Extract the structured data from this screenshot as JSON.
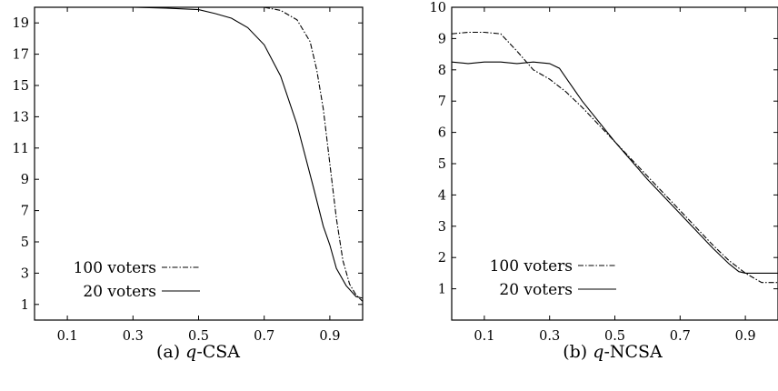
{
  "chart_data": [
    {
      "type": "line",
      "caption_prefix": "(a) ",
      "caption_italic": "q",
      "caption_suffix": "-CSA",
      "xlim": [
        0.0,
        1.0
      ],
      "ylim": [
        0,
        20
      ],
      "xticks": [
        0.1,
        0.3,
        0.5,
        0.7,
        0.9
      ],
      "yticks": [
        1,
        3,
        5,
        7,
        9,
        11,
        13,
        15,
        17,
        19
      ],
      "legend_position": "bottom-left",
      "series": [
        {
          "name": "100 voters",
          "style": "dash-dot",
          "x": [
            0.0,
            0.2,
            0.5,
            0.7,
            0.75,
            0.8,
            0.84,
            0.86,
            0.88,
            0.9,
            0.92,
            0.94,
            0.96,
            0.98,
            1.0
          ],
          "y": [
            20,
            20,
            20,
            20,
            19.8,
            19.2,
            17.8,
            16.0,
            13.5,
            10.0,
            6.5,
            3.8,
            2.3,
            1.6,
            1.2
          ]
        },
        {
          "name": "20 voters",
          "style": "solid",
          "x": [
            0.0,
            0.3,
            0.4,
            0.5,
            0.55,
            0.6,
            0.65,
            0.7,
            0.75,
            0.8,
            0.85,
            0.88,
            0.9,
            0.92,
            0.95,
            0.98,
            1.0
          ],
          "y": [
            20,
            20,
            19.95,
            19.85,
            19.6,
            19.3,
            18.7,
            17.6,
            15.6,
            12.5,
            8.5,
            6.0,
            4.8,
            3.3,
            2.2,
            1.5,
            1.4
          ]
        }
      ]
    },
    {
      "type": "line",
      "caption_prefix": "(b) ",
      "caption_italic": "q",
      "caption_suffix": "-NCSA",
      "xlim": [
        0.0,
        1.0
      ],
      "ylim": [
        0,
        10
      ],
      "xticks": [
        0.1,
        0.3,
        0.5,
        0.7,
        0.9
      ],
      "yticks": [
        1,
        2,
        3,
        4,
        5,
        6,
        7,
        8,
        9,
        10
      ],
      "legend_position": "bottom-left",
      "series": [
        {
          "name": "100 voters",
          "style": "dash-dot",
          "x": [
            0.0,
            0.05,
            0.1,
            0.15,
            0.2,
            0.25,
            0.3,
            0.35,
            0.4,
            0.5,
            0.6,
            0.7,
            0.8,
            0.85,
            0.9,
            0.95,
            1.0
          ],
          "y": [
            9.15,
            9.2,
            9.2,
            9.15,
            8.6,
            8.0,
            7.7,
            7.3,
            6.8,
            5.7,
            4.6,
            3.5,
            2.4,
            1.9,
            1.5,
            1.2,
            1.2
          ]
        },
        {
          "name": "20 voters",
          "style": "solid",
          "x": [
            0.0,
            0.05,
            0.1,
            0.15,
            0.2,
            0.25,
            0.3,
            0.33,
            0.36,
            0.4,
            0.5,
            0.6,
            0.7,
            0.8,
            0.85,
            0.88,
            0.9,
            1.0
          ],
          "y": [
            8.25,
            8.2,
            8.25,
            8.25,
            8.2,
            8.25,
            8.2,
            8.05,
            7.6,
            7.0,
            5.7,
            4.5,
            3.4,
            2.3,
            1.8,
            1.55,
            1.5,
            1.5
          ]
        }
      ]
    }
  ]
}
